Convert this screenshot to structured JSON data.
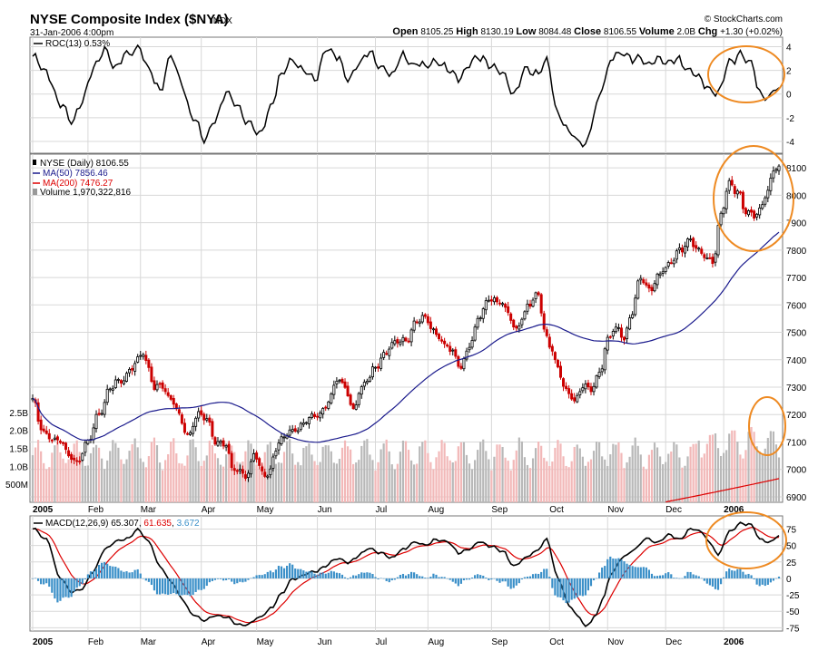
{
  "header": {
    "title": "NYSE Composite Index ($NYA)",
    "exchange": "INDX",
    "date": "31-Jan-2006 4:00pm",
    "copyright": "© StockCharts.com",
    "quote_open_label": "Open",
    "quote_open": "8105.25",
    "quote_high_label": "High",
    "quote_high": "8130.19",
    "quote_low_label": "Low",
    "quote_low": "8084.48",
    "quote_close_label": "Close",
    "quote_close": "8106.55",
    "quote_volume_label": "Volume",
    "quote_volume": "2.0B",
    "quote_chg_label": "Chg",
    "quote_chg": "+1.30 (+0.02%)"
  },
  "colors": {
    "price_up": "#000000",
    "price_down": "#cc0000",
    "ma50": "#1a1a8c",
    "ma200": "#dd0000",
    "vol_up": "#b8b8b8",
    "vol_down": "#f2b8b8",
    "hist": "#3a8fc8",
    "macd": "#000000",
    "signal": "#dd0000",
    "highlight": "#ee8a22"
  },
  "x_axis": {
    "months": [
      "2005",
      "Feb",
      "Mar",
      "Apr",
      "May",
      "Jun",
      "Jul",
      "Aug",
      "Sep",
      "Oct",
      "Nov",
      "Dec",
      "2006"
    ],
    "month_start_idx": [
      0,
      20,
      39,
      61,
      81,
      103,
      124,
      143,
      166,
      187,
      208,
      229,
      250
    ]
  },
  "chart_data": [
    {
      "type": "line",
      "panel": "roc",
      "legend": "ROC(13) 0.53%",
      "ylim": [
        -5,
        4.8
      ],
      "yticks": [
        4,
        2,
        0,
        -2,
        -4
      ],
      "anchors": [
        [
          0,
          3
        ],
        [
          5,
          2
        ],
        [
          10,
          -1
        ],
        [
          14,
          -2.2
        ],
        [
          18,
          -0.5
        ],
        [
          22,
          2
        ],
        [
          26,
          4
        ],
        [
          30,
          2
        ],
        [
          34,
          3.5
        ],
        [
          38,
          4
        ],
        [
          42,
          2
        ],
        [
          46,
          0.5
        ],
        [
          50,
          3
        ],
        [
          54,
          1
        ],
        [
          58,
          -2
        ],
        [
          62,
          -4
        ],
        [
          66,
          -2
        ],
        [
          70,
          0
        ],
        [
          74,
          -1
        ],
        [
          78,
          -2.5
        ],
        [
          82,
          -3.5
        ],
        [
          86,
          -1
        ],
        [
          90,
          1.5
        ],
        [
          94,
          3
        ],
        [
          98,
          2
        ],
        [
          102,
          1
        ],
        [
          106,
          4
        ],
        [
          110,
          3
        ],
        [
          114,
          1.5
        ],
        [
          118,
          2.5
        ],
        [
          122,
          3.5
        ],
        [
          126,
          2.5
        ],
        [
          130,
          1.5
        ],
        [
          134,
          3.5
        ],
        [
          138,
          2.5
        ],
        [
          142,
          2.2
        ],
        [
          146,
          3
        ],
        [
          150,
          2
        ],
        [
          154,
          1.5
        ],
        [
          158,
          2.5
        ],
        [
          162,
          3
        ],
        [
          166,
          2.5
        ],
        [
          170,
          1.5
        ],
        [
          174,
          0
        ],
        [
          178,
          2
        ],
        [
          182,
          1.5
        ],
        [
          186,
          3
        ],
        [
          190,
          -2
        ],
        [
          194,
          -3
        ],
        [
          198,
          -4
        ],
        [
          200,
          -4.5
        ],
        [
          204,
          -1
        ],
        [
          206,
          1
        ],
        [
          210,
          3
        ],
        [
          214,
          3.5
        ],
        [
          218,
          3
        ],
        [
          222,
          2.5
        ],
        [
          226,
          3.2
        ],
        [
          230,
          2.5
        ],
        [
          234,
          3
        ],
        [
          238,
          2
        ],
        [
          242,
          1
        ],
        [
          246,
          0.5
        ],
        [
          248,
          0
        ],
        [
          252,
          2.5
        ],
        [
          256,
          3.5
        ],
        [
          260,
          2.5
        ],
        [
          263,
          0
        ],
        [
          267,
          0
        ],
        [
          270,
          0.53
        ]
      ]
    },
    {
      "type": "candlestick",
      "panel": "price",
      "legend_price": "NYSE (Daily) 8106.55",
      "legend_ma50": "MA(50) 7856.46",
      "legend_ma200": "MA(200) 7476.27",
      "legend_volume": "Volume 1,970,322,816",
      "ylim": [
        6880,
        8150
      ],
      "yticks": [
        8100,
        8000,
        7900,
        7800,
        7700,
        7600,
        7500,
        7400,
        7300,
        7200,
        7100,
        7000,
        6900
      ],
      "close_anchors": [
        [
          0,
          7250
        ],
        [
          3,
          7150
        ],
        [
          6,
          7120
        ],
        [
          10,
          7100
        ],
        [
          13,
          7050
        ],
        [
          16,
          7030
        ],
        [
          20,
          7100
        ],
        [
          24,
          7200
        ],
        [
          28,
          7300
        ],
        [
          32,
          7320
        ],
        [
          36,
          7380
        ],
        [
          40,
          7420
        ],
        [
          42,
          7360
        ],
        [
          44,
          7300
        ],
        [
          46,
          7320
        ],
        [
          50,
          7250
        ],
        [
          53,
          7200
        ],
        [
          56,
          7130
        ],
        [
          60,
          7200
        ],
        [
          63,
          7180
        ],
        [
          66,
          7110
        ],
        [
          70,
          7080
        ],
        [
          72,
          7000
        ],
        [
          75,
          7000
        ],
        [
          78,
          6980
        ],
        [
          80,
          7060
        ],
        [
          82,
          7000
        ],
        [
          85,
          6980
        ],
        [
          88,
          7080
        ],
        [
          91,
          7120
        ],
        [
          95,
          7150
        ],
        [
          99,
          7180
        ],
        [
          103,
          7200
        ],
        [
          107,
          7250
        ],
        [
          110,
          7320
        ],
        [
          113,
          7300
        ],
        [
          116,
          7220
        ],
        [
          118,
          7280
        ],
        [
          121,
          7320
        ],
        [
          124,
          7380
        ],
        [
          128,
          7430
        ],
        [
          131,
          7460
        ],
        [
          135,
          7480
        ],
        [
          139,
          7540
        ],
        [
          142,
          7550
        ],
        [
          146,
          7500
        ],
        [
          149,
          7450
        ],
        [
          152,
          7420
        ],
        [
          155,
          7380
        ],
        [
          158,
          7450
        ],
        [
          162,
          7560
        ],
        [
          165,
          7630
        ],
        [
          169,
          7610
        ],
        [
          172,
          7570
        ],
        [
          175,
          7510
        ],
        [
          177,
          7560
        ],
        [
          180,
          7600
        ],
        [
          183,
          7640
        ],
        [
          185,
          7520
        ],
        [
          187,
          7460
        ],
        [
          190,
          7360
        ],
        [
          193,
          7290
        ],
        [
          196,
          7260
        ],
        [
          199,
          7300
        ],
        [
          202,
          7290
        ],
        [
          205,
          7360
        ],
        [
          208,
          7470
        ],
        [
          211,
          7510
        ],
        [
          214,
          7480
        ],
        [
          216,
          7560
        ],
        [
          220,
          7690
        ],
        [
          223,
          7650
        ],
        [
          226,
          7710
        ],
        [
          230,
          7740
        ],
        [
          234,
          7800
        ],
        [
          237,
          7840
        ],
        [
          240,
          7800
        ],
        [
          243,
          7780
        ],
        [
          246,
          7760
        ],
        [
          249,
          7920
        ],
        [
          252,
          8040
        ],
        [
          255,
          8020
        ],
        [
          258,
          7940
        ],
        [
          261,
          7920
        ],
        [
          263,
          7950
        ],
        [
          266,
          8030
        ],
        [
          268,
          8090
        ],
        [
          270,
          8106.55
        ]
      ],
      "vol_ylim": [
        0,
        3000000000
      ],
      "vol_ticks": [
        "2.5B",
        "2.0B",
        "1.5B",
        "1.0B",
        "500M"
      ],
      "vol_tick_values": [
        2500000000,
        2000000000,
        1500000000,
        1000000000,
        500000000
      ]
    },
    {
      "type": "line",
      "panel": "macd",
      "legend_name": "MACD(12,26,9)",
      "legend_macd": "65.307",
      "legend_signal": "61.635",
      "legend_hist": "3.672",
      "ylim": [
        -80,
        95
      ],
      "yticks": [
        75,
        50,
        25,
        0,
        -25,
        -50,
        -75
      ],
      "macd_anchors": [
        [
          0,
          75
        ],
        [
          5,
          60
        ],
        [
          10,
          0
        ],
        [
          14,
          -20
        ],
        [
          18,
          -15
        ],
        [
          22,
          10
        ],
        [
          26,
          45
        ],
        [
          30,
          55
        ],
        [
          34,
          60
        ],
        [
          38,
          75
        ],
        [
          42,
          55
        ],
        [
          46,
          20
        ],
        [
          50,
          -5
        ],
        [
          54,
          -30
        ],
        [
          58,
          -55
        ],
        [
          62,
          -65
        ],
        [
          66,
          -55
        ],
        [
          70,
          -60
        ],
        [
          74,
          -70
        ],
        [
          78,
          -70
        ],
        [
          82,
          -60
        ],
        [
          86,
          -45
        ],
        [
          90,
          -25
        ],
        [
          94,
          0
        ],
        [
          98,
          5
        ],
        [
          102,
          10
        ],
        [
          106,
          20
        ],
        [
          110,
          30
        ],
        [
          114,
          25
        ],
        [
          118,
          35
        ],
        [
          122,
          45
        ],
        [
          126,
          40
        ],
        [
          130,
          30
        ],
        [
          134,
          45
        ],
        [
          138,
          55
        ],
        [
          142,
          50
        ],
        [
          146,
          60
        ],
        [
          150,
          55
        ],
        [
          154,
          40
        ],
        [
          158,
          45
        ],
        [
          162,
          55
        ],
        [
          166,
          50
        ],
        [
          170,
          40
        ],
        [
          174,
          20
        ],
        [
          178,
          30
        ],
        [
          182,
          40
        ],
        [
          186,
          60
        ],
        [
          190,
          0
        ],
        [
          194,
          -40
        ],
        [
          198,
          -60
        ],
        [
          200,
          -75
        ],
        [
          204,
          -55
        ],
        [
          206,
          -30
        ],
        [
          210,
          10
        ],
        [
          214,
          35
        ],
        [
          218,
          45
        ],
        [
          222,
          60
        ],
        [
          226,
          55
        ],
        [
          230,
          65
        ],
        [
          234,
          60
        ],
        [
          238,
          75
        ],
        [
          242,
          70
        ],
        [
          246,
          50
        ],
        [
          248,
          35
        ],
        [
          252,
          70
        ],
        [
          256,
          85
        ],
        [
          260,
          80
        ],
        [
          263,
          60
        ],
        [
          267,
          55
        ],
        [
          270,
          65.3
        ]
      ]
    }
  ],
  "highlights": [
    "roc-recent-circle",
    "price-recent-circle",
    "volume-recent-circle",
    "macd-recent-circle"
  ]
}
